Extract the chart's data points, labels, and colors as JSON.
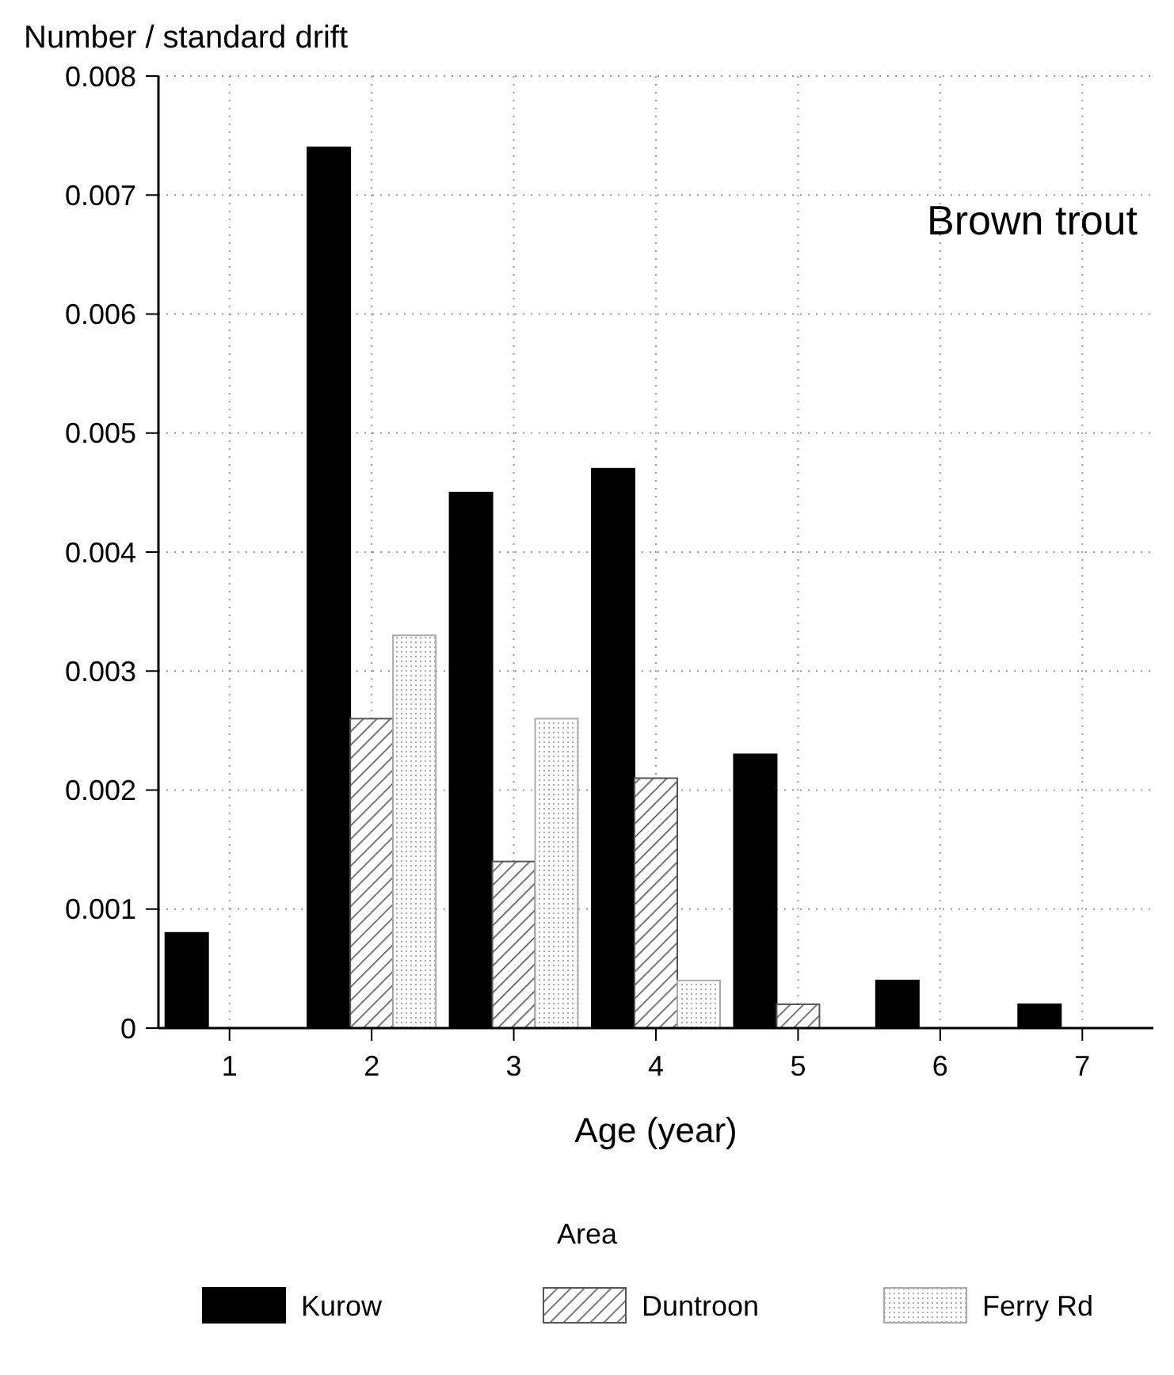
{
  "chart_data": {
    "type": "bar",
    "ylabel": "Number / standard drift",
    "xlabel": "Age (year)",
    "legend_title": "Area",
    "annotations": [
      "Brown trout"
    ],
    "categories": [
      "1",
      "2",
      "3",
      "4",
      "5",
      "6",
      "7"
    ],
    "series": [
      {
        "name": "Kurow",
        "color": "#000000",
        "values": [
          0.0008,
          0.0074,
          0.0045,
          0.0047,
          0.0023,
          0.0004,
          0.0002
        ]
      },
      {
        "name": "Duntroon",
        "color": "#555555",
        "values": [
          null,
          0.0026,
          0.0014,
          0.0021,
          0.0002,
          null,
          null
        ]
      },
      {
        "name": "Ferry Rd",
        "color": "#aaaaaa",
        "values": [
          null,
          0.0033,
          0.0026,
          0.0004,
          null,
          null,
          null
        ]
      }
    ],
    "ylim": [
      0,
      0.008
    ],
    "yticks": [
      "0",
      0.001,
      0.002,
      0.003,
      0.004,
      0.005,
      0.006,
      0.007,
      0.008
    ],
    "grid": true,
    "legend": "bottom"
  }
}
